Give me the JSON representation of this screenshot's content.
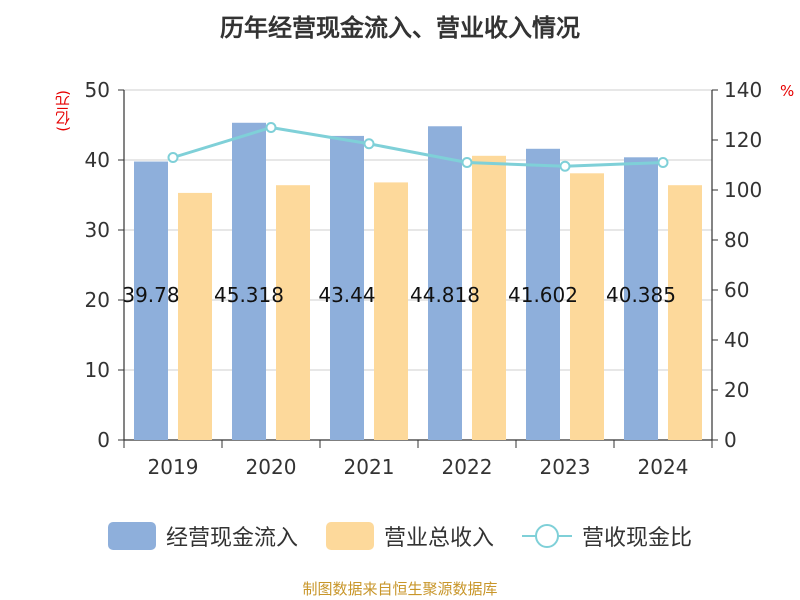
{
  "title": "历年经营现金流入、营业收入情况",
  "unit_left": "(亿元)",
  "unit_right": "%",
  "source": "制图数据来自恒生聚源数据库",
  "legend": [
    {
      "label": "经营现金流入",
      "icon": "bar-swatch",
      "color": "#8eafdb"
    },
    {
      "label": "营业总收入",
      "icon": "bar-swatch",
      "color": "#fdd99b"
    },
    {
      "label": "营收现金比",
      "icon": "line-circle-swatch",
      "color": "#7fd0d8"
    }
  ],
  "colors": {
    "inflow": "#8eafdb",
    "revenue": "#fdd99b",
    "ratio": "#7fd0d8"
  },
  "chart_data": {
    "type": "bar",
    "categories": [
      "2019",
      "2020",
      "2021",
      "2022",
      "2023",
      "2024"
    ],
    "series": [
      {
        "name": "经营现金流入",
        "axis": "left",
        "type": "bar",
        "values": [
          39.78,
          45.318,
          43.44,
          44.818,
          41.602,
          40.385
        ],
        "labels": [
          "39.78",
          "45.318",
          "43.44",
          "44.818",
          "41.602",
          "40.385"
        ]
      },
      {
        "name": "营业总收入",
        "axis": "left",
        "type": "bar",
        "values": [
          35.3,
          36.4,
          36.8,
          40.6,
          38.1,
          36.4
        ]
      },
      {
        "name": "营收现金比",
        "axis": "right",
        "type": "line",
        "values": [
          113,
          125,
          118.5,
          111,
          109.5,
          111
        ]
      }
    ],
    "y_left": {
      "min": 0,
      "max": 50,
      "ticks": [
        "0",
        "10",
        "20",
        "30",
        "40",
        "50"
      ]
    },
    "y_right": {
      "min": 0,
      "max": 140,
      "ticks": [
        "0",
        "20",
        "40",
        "60",
        "80",
        "100",
        "120",
        "140"
      ]
    },
    "grid": true,
    "legend_position": "bottom"
  }
}
